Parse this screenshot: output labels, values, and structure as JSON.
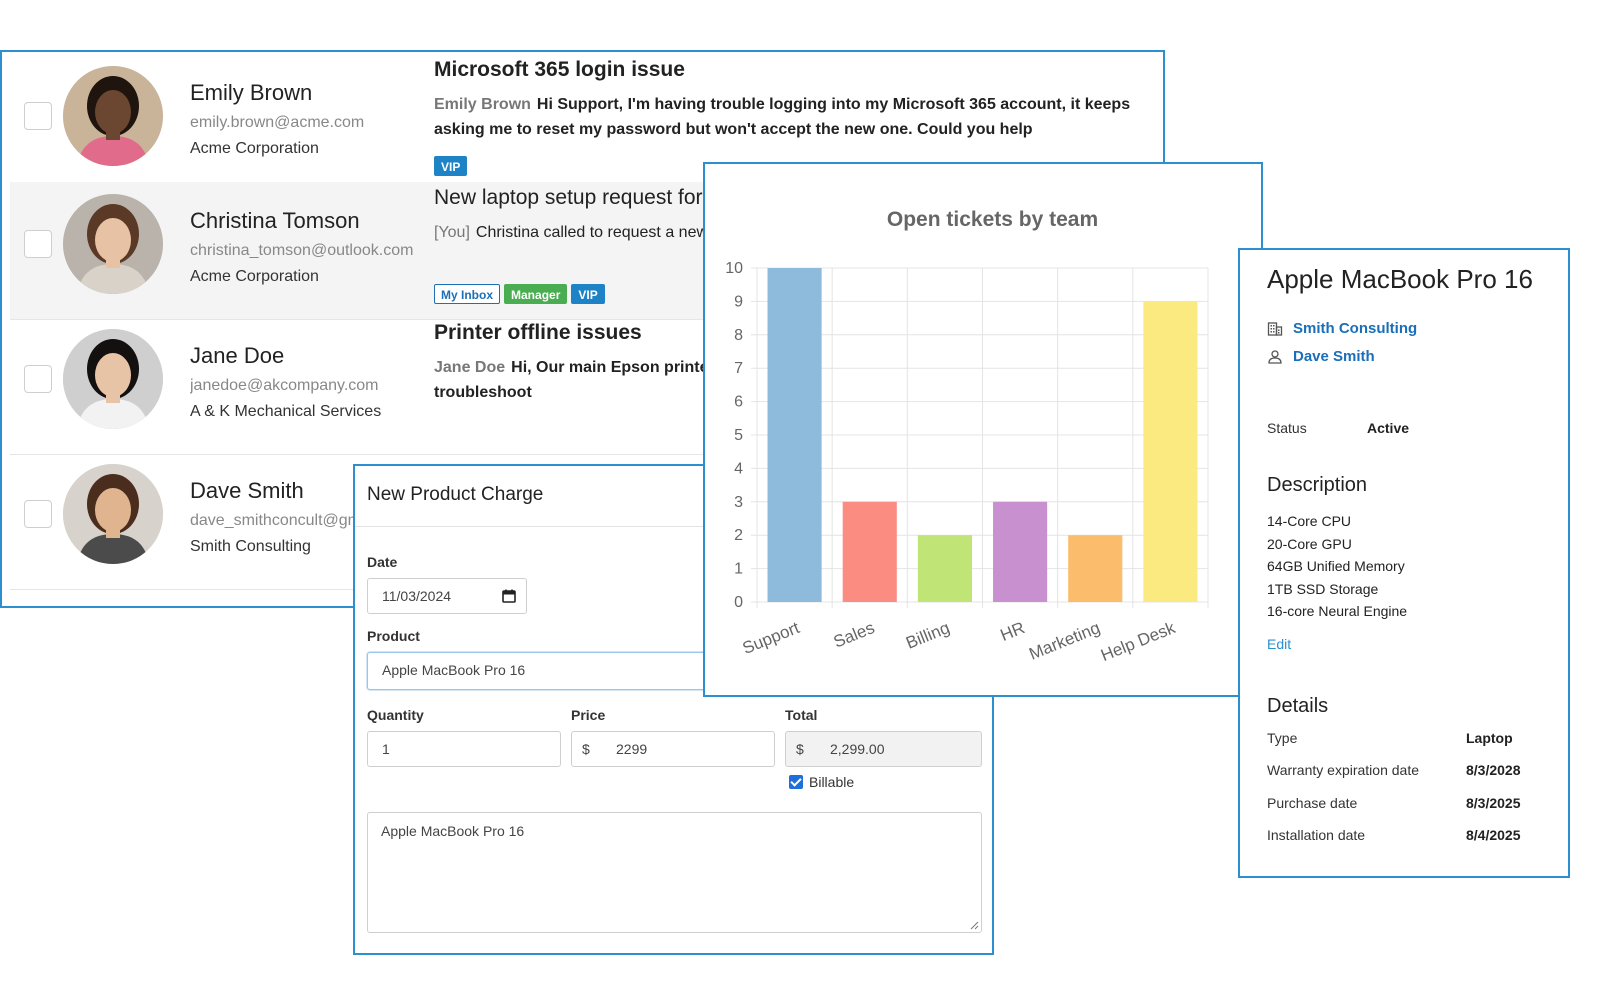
{
  "tickets": [
    {
      "contact_name": "Emily Brown",
      "contact_email": "emily.brown@acme.com",
      "contact_company": "Acme Corporation",
      "subject": "Microsoft 365 login issue",
      "author": "Emily Brown",
      "preview": "Hi Support, I'm having trouble logging into my Microsoft 365 account, it keeps asking me to reset my password but won't accept the new one. Could you help",
      "tags": [
        "VIP"
      ]
    },
    {
      "contact_name": "Christina Tomson",
      "contact_email": "christina_tomson@outlook.com",
      "contact_company": "Acme Corporation",
      "subject": "New laptop setup request for Christina",
      "author": "[You]",
      "preview": "Christina called to request a new laptop setup to replace his old laptop.",
      "tags": [
        "My Inbox",
        "Manager",
        "VIP"
      ]
    },
    {
      "contact_name": "Jane Doe",
      "contact_email": "janedoe@akcompany.com",
      "contact_company": "A & K Mechanical Services",
      "subject": "Printer offline issues",
      "author": "Jane Doe",
      "preview": "Hi, Our main Epson printer has gone offline and is not working. Can you help troubleshoot",
      "tags": []
    },
    {
      "contact_name": "Dave Smith",
      "contact_email": "dave_smithconcult@gmail.com",
      "contact_company": "Smith Consulting",
      "subject": "",
      "author": "",
      "preview": "",
      "tags": []
    }
  ],
  "charge_form": {
    "title": "New Product Charge",
    "date_label": "Date",
    "date_value": "11/03/2024",
    "product_label": "Product",
    "product_value": "Apple MacBook Pro 16",
    "quantity_label": "Quantity",
    "quantity_value": "1",
    "price_label": "Price",
    "price_currency": "$",
    "price_value": "2299",
    "total_label": "Total",
    "total_currency": "$",
    "total_value": "2,299.00",
    "billable_label": "Billable",
    "billable_checked": true,
    "notes_value": "Apple MacBook Pro 16"
  },
  "chart_data": {
    "type": "bar",
    "title": "Open tickets by team",
    "categories": [
      "Support",
      "Sales",
      "Billing",
      "HR",
      "Marketing",
      "Help Desk"
    ],
    "values": [
      10,
      3,
      2,
      3,
      2,
      9
    ],
    "colors": [
      "#8ebbdc",
      "#fb8c82",
      "#c0e476",
      "#c890cf",
      "#fbbd6c",
      "#fbea7f"
    ],
    "ylim": [
      0,
      10
    ],
    "yticks": [
      0,
      1,
      2,
      3,
      4,
      5,
      6,
      7,
      8,
      9,
      10
    ],
    "grid": true,
    "legend": "none"
  },
  "asset": {
    "title": "Apple MacBook Pro 16",
    "company": "Smith Consulting",
    "contact": "Dave Smith",
    "status_label": "Status",
    "status_value": "Active",
    "description_heading": "Description",
    "description_lines": [
      "14-Core CPU",
      "20-Core GPU",
      "64GB Unified Memory",
      "1TB SSD Storage",
      "16-core Neural Engine"
    ],
    "edit_label": "Edit",
    "details_heading": "Details",
    "details": [
      {
        "label": "Type",
        "value": "Laptop"
      },
      {
        "label": "Warranty expiration date",
        "value": "8/3/2028"
      },
      {
        "label": "Purchase date",
        "value": "8/3/2025"
      },
      {
        "label": "Installation date",
        "value": "8/4/2025"
      }
    ]
  },
  "colors": {
    "panel_border": "#2b8fd0",
    "link": "#1a6fb8",
    "tag_vip": "#1e82c6",
    "tag_manager": "#4aad52"
  }
}
